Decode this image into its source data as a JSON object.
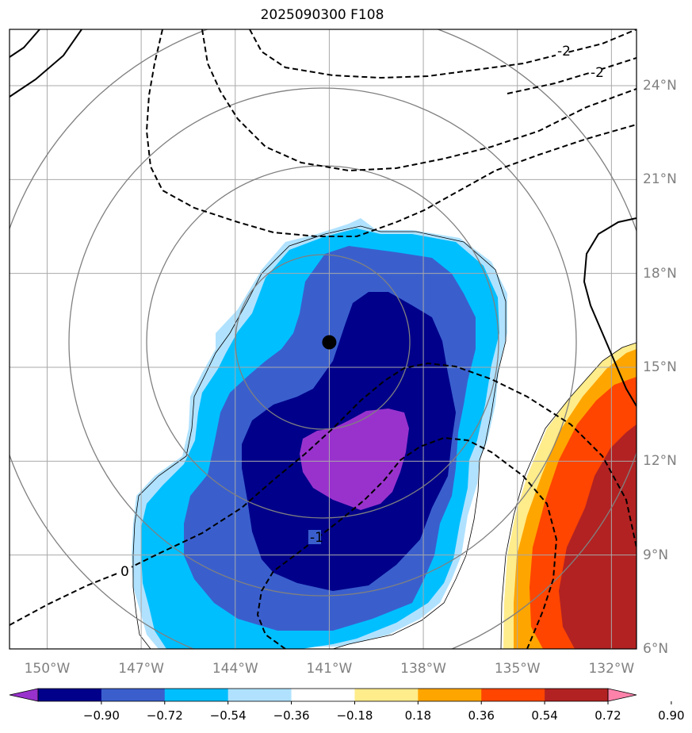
{
  "title": "2025090300 F108",
  "lon_labels": [
    "150°W",
    "147°W",
    "144°W",
    "141°W",
    "138°W",
    "135°W",
    "132°W"
  ],
  "lat_labels": [
    "24°N",
    "21°N",
    "18°N",
    "15°N",
    "12°N",
    "9°N",
    "6°N"
  ],
  "lon_values": [
    -150,
    -147,
    -144,
    -141,
    -138,
    -135,
    -132
  ],
  "lat_values": [
    24,
    21,
    18,
    15,
    12,
    9,
    6
  ],
  "extent": {
    "lon_min": -151.2,
    "lon_max": -131.2,
    "lat_min": 6,
    "lat_max": 25.8
  },
  "storm_center": {
    "lon": -141.0,
    "lat": 15.8
  },
  "contour_labels": [
    "-2",
    "-2",
    "0",
    "-1"
  ],
  "colorbar": {
    "ticks": [
      "−0.90",
      "−0.72",
      "−0.54",
      "−0.36",
      "−0.18",
      "0.18",
      "0.36",
      "0.54",
      "0.72",
      "0.90"
    ],
    "colors": [
      "#9932cc",
      "#00008b",
      "#3a5fcd",
      "#00bfff",
      "#b0e2ff",
      "#ffffff",
      "#ffec8b",
      "#ffa500",
      "#ff4500",
      "#b22222",
      "#ff82ab"
    ],
    "under_color": "#9932cc",
    "over_color": "#ff82ab"
  },
  "colors": {
    "purple": "#9932cc",
    "navy": "#00008b",
    "royal_blue": "#3a5fcd",
    "deep_sky": "#00bfff",
    "light_sky": "#b0e2ff",
    "light_yellow": "#ffec8b",
    "orange": "#ffa500",
    "orange_red": "#ff4500",
    "firebrick": "#b22222",
    "grid": "#a9a9a9",
    "ring": "#808080"
  }
}
